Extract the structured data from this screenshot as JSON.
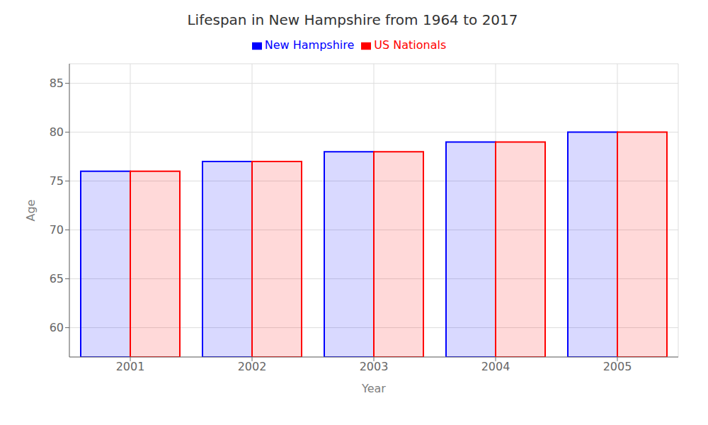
{
  "chart_data": {
    "type": "bar",
    "title": "Lifespan in New Hampshire from 1964 to 2017",
    "x_label": "Year",
    "y_label": "Age",
    "categories": [
      "2001",
      "2002",
      "2003",
      "2004",
      "2005"
    ],
    "series": [
      {
        "name": "New Hampshire",
        "color": "#0000ff",
        "values": [
          76,
          77,
          78,
          79,
          80
        ]
      },
      {
        "name": "US Nationals",
        "color": "#ff0000",
        "values": [
          76,
          77,
          78,
          79,
          80
        ]
      }
    ],
    "ylim": [
      57,
      87
    ],
    "yticks": [
      60,
      65,
      70,
      75,
      80,
      85
    ],
    "grid": true,
    "legend": "top"
  }
}
